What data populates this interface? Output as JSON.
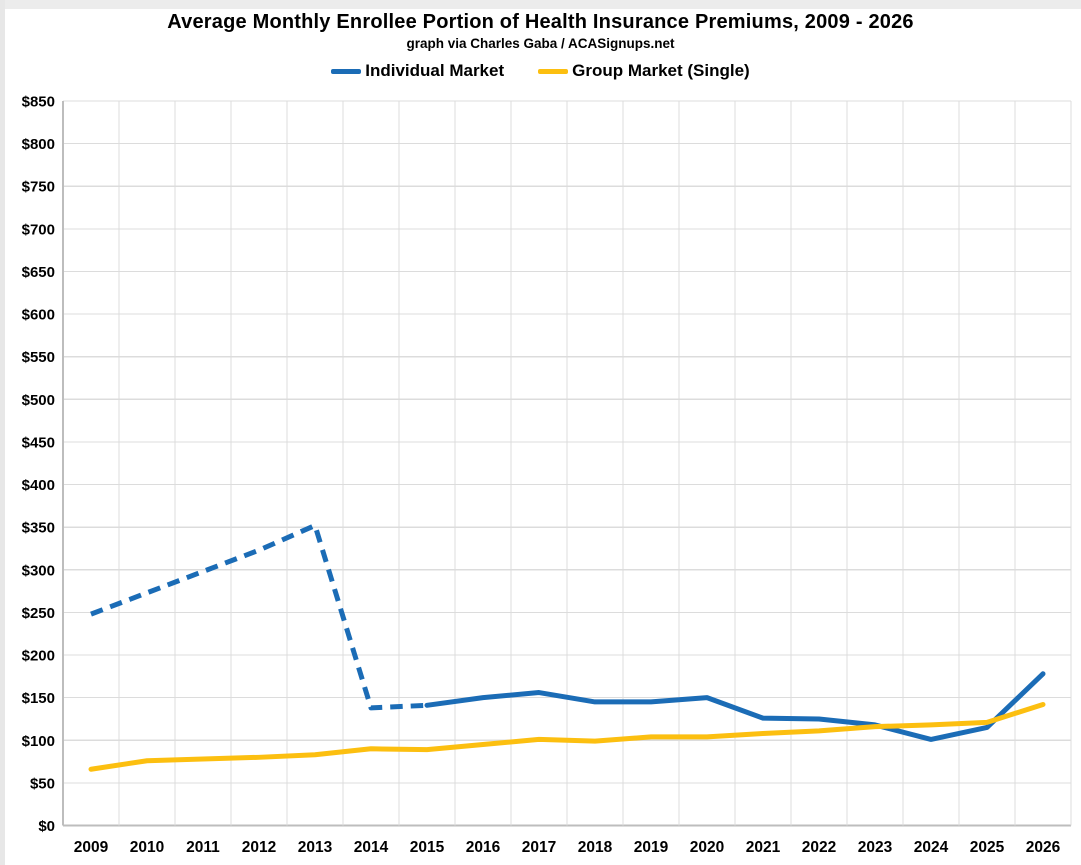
{
  "chart_data": {
    "type": "line",
    "title": "Average Monthly Enrollee Portion of Health Insurance Premiums, 2009 - 2026",
    "subtitle": "graph via Charles Gaba / ACASignups.net",
    "legend_position": "top",
    "grid": true,
    "categories": [
      "2009",
      "2010",
      "2011",
      "2012",
      "2013",
      "2014",
      "2015",
      "2016",
      "2017",
      "2018",
      "2019",
      "2020",
      "2021",
      "2022",
      "2023",
      "2024",
      "2025",
      "2026"
    ],
    "series": [
      {
        "name": "Individual Market",
        "color": "#1B6CB6",
        "values": [
          248,
          273,
          298,
          323,
          352,
          138,
          141,
          150,
          156,
          145,
          145,
          150,
          126,
          125,
          118,
          101,
          115,
          178
        ],
        "dash_split_index": 6,
        "dash_note": "2009 through 2015 segment drawn as dashed line"
      },
      {
        "name": "Group Market (Single)",
        "color": "#FCBF10",
        "values": [
          66,
          76,
          78,
          80,
          83,
          90,
          89,
          95,
          101,
          99,
          104,
          104,
          108,
          111,
          116,
          118,
          121,
          142
        ]
      }
    ],
    "y_axis": {
      "min": 0,
      "max": 850,
      "step": 50,
      "tick_prefix": "$"
    },
    "x_axis": {
      "label": "",
      "tick_source": "categories"
    },
    "colors": {
      "gridline": "#DCDCDC",
      "axis_line": "#BDBDBD",
      "text": "#000000"
    }
  }
}
